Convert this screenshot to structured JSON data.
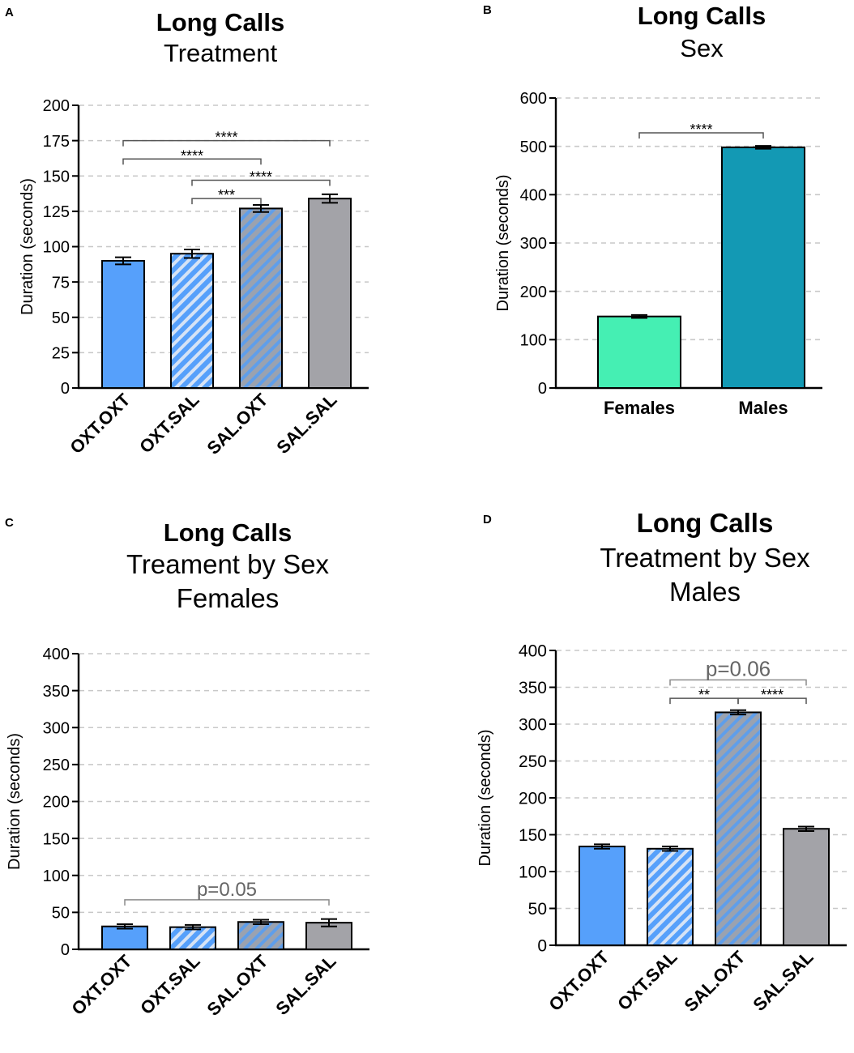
{
  "colors": {
    "oxt_oxt": "#56a0fb",
    "oxt_sal_base": "#56a0fb",
    "oxt_sal_stripe": "#d6e3f5",
    "sal_oxt_base": "#9aa2b0",
    "sal_oxt_stripe": "#5f9eea",
    "sal_sal": "#a3a3a8",
    "females": "#45efb3",
    "males": "#1399b4",
    "grid": "#c8c8c8"
  },
  "chart_data": [
    {
      "panel": "A",
      "type": "bar",
      "title": "Long Calls",
      "subtitle": [
        "Treatment"
      ],
      "ylabel": "Duration (seconds)",
      "ylim": [
        0,
        200
      ],
      "yticks": [
        0,
        25,
        50,
        75,
        100,
        125,
        150,
        175,
        200
      ],
      "categories": [
        "OXT.OXT",
        "OXT.SAL",
        "SAL.OXT",
        "SAL.SAL"
      ],
      "values": [
        90,
        95,
        127,
        134
      ],
      "errors": [
        2.5,
        3,
        2.5,
        3
      ],
      "fills": [
        "oxt_oxt",
        "oxt_sal",
        "sal_oxt",
        "sal_sal"
      ],
      "rotate_labels": true,
      "brackets": [
        {
          "from": 0,
          "to": 3,
          "y": 175,
          "label": "****"
        },
        {
          "from": 0,
          "to": 2,
          "y": 162,
          "label": "****"
        },
        {
          "from": 1,
          "to": 3,
          "y": 147,
          "label": "****"
        },
        {
          "from": 1,
          "to": 2,
          "y": 134,
          "label": "***"
        }
      ]
    },
    {
      "panel": "B",
      "type": "bar",
      "title": "Long Calls",
      "subtitle": [
        "Sex"
      ],
      "ylabel": "Duration (seconds)",
      "ylim": [
        0,
        600
      ],
      "yticks": [
        0,
        100,
        200,
        300,
        400,
        500,
        600
      ],
      "categories": [
        "Females",
        "Males"
      ],
      "values": [
        148,
        498
      ],
      "errors": [
        3,
        3
      ],
      "fills": [
        "females",
        "males"
      ],
      "rotate_labels": false,
      "brackets": [
        {
          "from": 0,
          "to": 1,
          "y": 528,
          "label": "****"
        }
      ]
    },
    {
      "panel": "C",
      "type": "bar",
      "title": "Long Calls",
      "subtitle": [
        "Treament by Sex",
        "Females"
      ],
      "ylabel": "Duration (seconds)",
      "ylim": [
        0,
        400
      ],
      "yticks": [
        0,
        50,
        100,
        150,
        200,
        250,
        300,
        350,
        400
      ],
      "categories": [
        "OXT.OXT",
        "OXT.SAL",
        "SAL.OXT",
        "SAL.SAL"
      ],
      "values": [
        31,
        30,
        37,
        36
      ],
      "errors": [
        3,
        3,
        3,
        5
      ],
      "fills": [
        "oxt_oxt",
        "oxt_sal",
        "sal_oxt",
        "sal_sal"
      ],
      "rotate_labels": true,
      "brackets": [
        {
          "from": 0,
          "to": 3,
          "y": 67,
          "label": "p=0.05",
          "gray": true
        }
      ]
    },
    {
      "panel": "D",
      "type": "bar",
      "title": "Long Calls",
      "subtitle": [
        "Treatment by Sex",
        "Males"
      ],
      "ylabel": "Duration (seconds)",
      "ylim": [
        0,
        400
      ],
      "yticks": [
        0,
        50,
        100,
        150,
        200,
        250,
        300,
        350,
        400
      ],
      "categories": [
        "OXT.OXT",
        "OXT.SAL",
        "SAL.OXT",
        "SAL.SAL"
      ],
      "values": [
        134,
        131,
        316,
        158
      ],
      "errors": [
        3,
        3,
        3,
        3
      ],
      "fills": [
        "oxt_oxt",
        "oxt_sal",
        "sal_oxt",
        "sal_sal"
      ],
      "rotate_labels": true,
      "brackets": [
        {
          "from": 1,
          "to": 3,
          "y": 360,
          "label": "p=0.06",
          "gray": true
        },
        {
          "from": 1,
          "to": 2,
          "y": 335,
          "label": "**"
        },
        {
          "from": 2,
          "to": 3,
          "y": 335,
          "label": "****"
        }
      ]
    }
  ]
}
